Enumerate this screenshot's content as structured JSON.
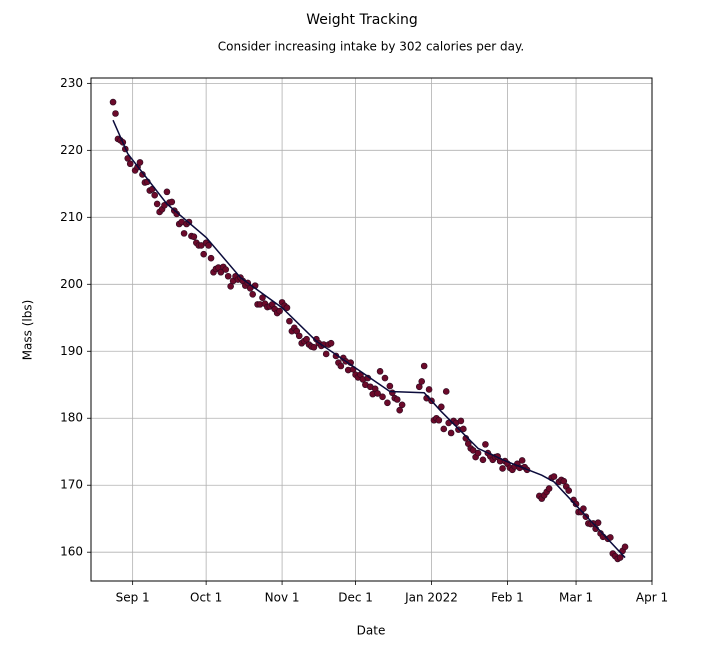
{
  "chart_data": {
    "type": "scatter",
    "title": "Weight Tracking",
    "subtitle": "Consider increasing intake by 302 calories per day.",
    "x_label": "Date",
    "y_label": "Mass (lbs)",
    "xlim": [
      "2021-08-15",
      "2022-04-01"
    ],
    "ylim": [
      155.7,
      230.8
    ],
    "xticks": [
      {
        "value": "2021-09-01",
        "label": "Sep 1"
      },
      {
        "value": "2021-10-01",
        "label": "Oct 1"
      },
      {
        "value": "2021-11-01",
        "label": "Nov 1"
      },
      {
        "value": "2021-12-01",
        "label": "Dec 1"
      },
      {
        "value": "2022-01-01",
        "label": "Jan 2022"
      },
      {
        "value": "2022-02-01",
        "label": "Feb 1"
      },
      {
        "value": "2022-03-01",
        "label": "Mar 1"
      },
      {
        "value": "2022-04-01",
        "label": "Apr 1"
      }
    ],
    "yticks": [
      160,
      170,
      180,
      190,
      200,
      210,
      220,
      230
    ],
    "grid": true,
    "series": [
      {
        "type": "scatter",
        "color": "#6b0a2a",
        "edge_color": "#2a0a20",
        "x": [
          "2021-08-24",
          "2021-08-25",
          "2021-08-26",
          "2021-08-27",
          "2021-08-28",
          "2021-08-29",
          "2021-08-30",
          "2021-08-31",
          "2021-09-02",
          "2021-09-03",
          "2021-09-04",
          "2021-09-05",
          "2021-09-06",
          "2021-09-07",
          "2021-09-08",
          "2021-09-09",
          "2021-09-10",
          "2021-09-11",
          "2021-09-12",
          "2021-09-13",
          "2021-09-14",
          "2021-09-15",
          "2021-09-16",
          "2021-09-17",
          "2021-09-18",
          "2021-09-19",
          "2021-09-20",
          "2021-09-21",
          "2021-09-22",
          "2021-09-23",
          "2021-09-24",
          "2021-09-25",
          "2021-09-26",
          "2021-09-27",
          "2021-09-28",
          "2021-09-29",
          "2021-09-30",
          "2021-10-01",
          "2021-10-02",
          "2021-10-03",
          "2021-10-04",
          "2021-10-05",
          "2021-10-06",
          "2021-10-07",
          "2021-10-08",
          "2021-10-09",
          "2021-10-10",
          "2021-10-11",
          "2021-10-12",
          "2021-10-13",
          "2021-10-14",
          "2021-10-15",
          "2021-10-16",
          "2021-10-17",
          "2021-10-18",
          "2021-10-19",
          "2021-10-20",
          "2021-10-21",
          "2021-10-22",
          "2021-10-23",
          "2021-10-24",
          "2021-10-25",
          "2021-10-26",
          "2021-10-27",
          "2021-10-28",
          "2021-10-29",
          "2021-10-30",
          "2021-10-31",
          "2021-11-01",
          "2021-11-02",
          "2021-11-03",
          "2021-11-04",
          "2021-11-05",
          "2021-11-06",
          "2021-11-07",
          "2021-11-08",
          "2021-11-09",
          "2021-11-10",
          "2021-11-11",
          "2021-11-12",
          "2021-11-13",
          "2021-11-14",
          "2021-11-15",
          "2021-11-16",
          "2021-11-17",
          "2021-11-18",
          "2021-11-19",
          "2021-11-20",
          "2021-11-21",
          "2021-11-23",
          "2021-11-24",
          "2021-11-25",
          "2021-11-26",
          "2021-11-27",
          "2021-11-28",
          "2021-11-29",
          "2021-11-30",
          "2021-12-01",
          "2021-12-02",
          "2021-12-03",
          "2021-12-04",
          "2021-12-05",
          "2021-12-06",
          "2021-12-07",
          "2021-12-08",
          "2021-12-09",
          "2021-12-10",
          "2021-12-11",
          "2021-12-12",
          "2021-12-13",
          "2021-12-14",
          "2021-12-15",
          "2021-12-16",
          "2021-12-17",
          "2021-12-18",
          "2021-12-19",
          "2021-12-20",
          "2021-12-27",
          "2021-12-28",
          "2021-12-29",
          "2021-12-30",
          "2021-12-31",
          "2022-01-01",
          "2022-01-02",
          "2022-01-03",
          "2022-01-04",
          "2022-01-05",
          "2022-01-06",
          "2022-01-07",
          "2022-01-08",
          "2022-01-09",
          "2022-01-10",
          "2022-01-11",
          "2022-01-12",
          "2022-01-13",
          "2022-01-14",
          "2022-01-15",
          "2022-01-16",
          "2022-01-17",
          "2022-01-18",
          "2022-01-19",
          "2022-01-20",
          "2022-01-22",
          "2022-01-23",
          "2022-01-24",
          "2022-01-25",
          "2022-01-26",
          "2022-01-27",
          "2022-01-28",
          "2022-01-29",
          "2022-01-30",
          "2022-01-31",
          "2022-02-01",
          "2022-02-02",
          "2022-02-03",
          "2022-02-04",
          "2022-02-05",
          "2022-02-06",
          "2022-02-07",
          "2022-02-08",
          "2022-02-09",
          "2022-02-14",
          "2022-02-15",
          "2022-02-16",
          "2022-02-17",
          "2022-02-18",
          "2022-02-19",
          "2022-02-20",
          "2022-02-22",
          "2022-02-23",
          "2022-02-24",
          "2022-02-25",
          "2022-02-26",
          "2022-02-28",
          "2022-03-01",
          "2022-03-02",
          "2022-03-03",
          "2022-03-04",
          "2022-03-05",
          "2022-03-06",
          "2022-03-07",
          "2022-03-08",
          "2022-03-09",
          "2022-03-10",
          "2022-03-11",
          "2022-03-12",
          "2022-03-14",
          "2022-03-15",
          "2022-03-16",
          "2022-03-17",
          "2022-03-18",
          "2022-03-19",
          "2022-03-20",
          "2022-03-21"
        ],
        "values": [
          227.2,
          225.5,
          221.7,
          221.5,
          221.2,
          220.2,
          218.8,
          218.0,
          217.0,
          217.5,
          218.2,
          216.4,
          215.2,
          215.3,
          214.0,
          214.2,
          213.3,
          212.0,
          210.8,
          211.2,
          211.8,
          213.8,
          212.2,
          212.3,
          211.0,
          210.5,
          209.0,
          209.3,
          207.6,
          209.0,
          209.3,
          207.2,
          207.1,
          206.2,
          205.8,
          205.8,
          204.5,
          206.2,
          205.8,
          203.9,
          201.8,
          202.3,
          202.5,
          201.8,
          202.6,
          202.2,
          201.2,
          199.7,
          200.5,
          201.2,
          200.7,
          201.0,
          200.5,
          199.8,
          200.2,
          199.4,
          198.5,
          199.8,
          197.0,
          197.0,
          198.0,
          197.1,
          196.6,
          196.7,
          197.0,
          196.3,
          195.7,
          196.0,
          197.3,
          196.8,
          196.5,
          194.5,
          193.0,
          193.5,
          193.0,
          192.3,
          191.2,
          191.5,
          191.8,
          191.0,
          190.7,
          190.6,
          191.8,
          191.2,
          190.8,
          191.0,
          189.6,
          191.0,
          191.2,
          189.3,
          188.3,
          187.8,
          189.0,
          188.5,
          187.2,
          188.3,
          187.3,
          186.5,
          186.1,
          186.5,
          185.8,
          185.0,
          186.0,
          184.7,
          183.6,
          184.4,
          183.7,
          187.0,
          183.2,
          186.0,
          182.3,
          184.8,
          183.8,
          183.0,
          182.8,
          181.2,
          182.0,
          184.7,
          185.5,
          187.8,
          183.0,
          184.3,
          182.6,
          179.7,
          180.0,
          179.7,
          181.7,
          178.4,
          184.0,
          179.3,
          177.8,
          179.6,
          179.3,
          178.3,
          179.6,
          178.4,
          177.0,
          176.2,
          175.5,
          175.2,
          174.2,
          174.8,
          173.8,
          176.1,
          174.8,
          174.3,
          173.8,
          174.2,
          174.3,
          173.6,
          172.5,
          173.6,
          173.2,
          172.6,
          172.3,
          172.8,
          173.2,
          172.6,
          173.7,
          172.7,
          172.3,
          168.4,
          168.0,
          168.5,
          169.0,
          169.5,
          171.1,
          171.3,
          170.5,
          170.8,
          170.6,
          169.8,
          169.2,
          167.8,
          167.2,
          166.0,
          166.0,
          166.5,
          165.3,
          164.3,
          164.2,
          164.3,
          163.5,
          164.4,
          162.8,
          162.3,
          162.0,
          162.2,
          159.8,
          159.4,
          159.0,
          159.2,
          160.2,
          160.8
        ]
      },
      {
        "type": "line",
        "color": "#0b0b3b",
        "x": [
          "2021-08-24",
          "2021-08-30",
          "2021-09-15",
          "2021-10-01",
          "2021-10-15",
          "2021-11-01",
          "2021-11-15",
          "2021-12-01",
          "2021-12-15",
          "2021-12-29",
          "2022-01-05",
          "2022-01-20",
          "2022-02-01",
          "2022-02-15",
          "2022-02-20",
          "2022-03-01",
          "2022-03-10",
          "2022-03-21"
        ],
        "values": [
          224.5,
          219.5,
          212.0,
          207.0,
          201.0,
          196.5,
          191.5,
          187.5,
          184.0,
          183.8,
          181.0,
          175.5,
          173.5,
          171.5,
          170.5,
          167.0,
          163.5,
          159.2
        ]
      }
    ]
  }
}
